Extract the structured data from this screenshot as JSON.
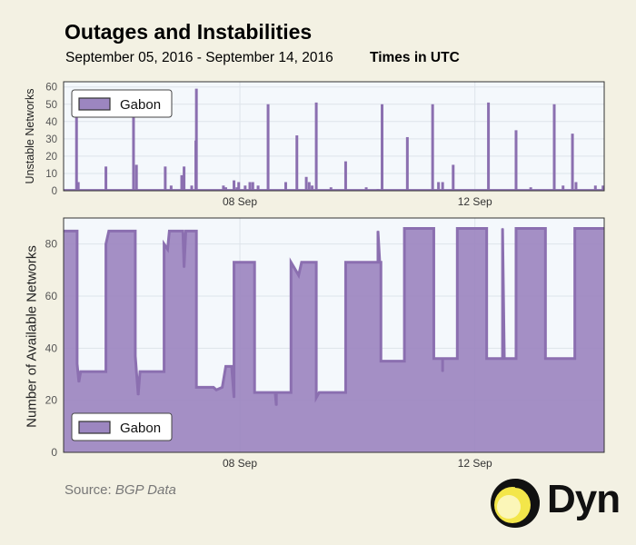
{
  "title": "Outages and Instabilities",
  "subtitle": "September 05, 2016 - September 14, 2016",
  "timezone_note": "Times in UTC",
  "source_label": "Source:",
  "source_value": "BGP Data",
  "brand": "Dyn",
  "colors": {
    "series": "#8b6fb0",
    "series_fill": "#9c86c0",
    "plot_bg": "#f4f8fc",
    "page_bg": "#f3f1e3"
  },
  "chart_data": [
    {
      "type": "bar",
      "ylabel": "Unstable Networks",
      "ylim": [
        0,
        63
      ],
      "yticks": [
        0,
        10,
        20,
        30,
        40,
        50,
        60
      ],
      "xlim": [
        0,
        9.2
      ],
      "xticks": [
        {
          "x": 3,
          "label": "08 Sep"
        },
        {
          "x": 7,
          "label": "12 Sep"
        }
      ],
      "grid": true,
      "legend": {
        "entries": [
          "Gabon"
        ],
        "placement": "top-left"
      },
      "series": [
        {
          "name": "Gabon",
          "points": [
            [
              0.22,
              47
            ],
            [
              0.25,
              5
            ],
            [
              0.72,
              14
            ],
            [
              1.19,
              47
            ],
            [
              1.24,
              15
            ],
            [
              1.73,
              14
            ],
            [
              1.83,
              3
            ],
            [
              2.01,
              9
            ],
            [
              2.05,
              14
            ],
            [
              2.18,
              3
            ],
            [
              2.26,
              59
            ],
            [
              2.25,
              29
            ],
            [
              2.72,
              3
            ],
            [
              2.76,
              2
            ],
            [
              2.9,
              6
            ],
            [
              2.95,
              2
            ],
            [
              2.98,
              5
            ],
            [
              3.09,
              3
            ],
            [
              3.17,
              5
            ],
            [
              3.22,
              5
            ],
            [
              3.31,
              3
            ],
            [
              3.48,
              50
            ],
            [
              3.78,
              5
            ],
            [
              3.97,
              32
            ],
            [
              4.13,
              8
            ],
            [
              4.18,
              5
            ],
            [
              4.23,
              3
            ],
            [
              4.3,
              51
            ],
            [
              4.55,
              2
            ],
            [
              4.8,
              17
            ],
            [
              5.15,
              2
            ],
            [
              5.35,
              1
            ],
            [
              5.42,
              50
            ],
            [
              5.85,
              31
            ],
            [
              6.28,
              50
            ],
            [
              6.38,
              5
            ],
            [
              6.45,
              5
            ],
            [
              6.63,
              15
            ],
            [
              7.23,
              51
            ],
            [
              7.7,
              35
            ],
            [
              7.95,
              2
            ],
            [
              8.35,
              50
            ],
            [
              8.5,
              3
            ],
            [
              8.66,
              33
            ],
            [
              8.72,
              5
            ],
            [
              9.05,
              3
            ],
            [
              9.18,
              3
            ]
          ]
        }
      ]
    },
    {
      "type": "area",
      "ylabel": "Number of Available Networks",
      "ylim": [
        0,
        90
      ],
      "yticks": [
        0,
        20,
        40,
        60,
        80
      ],
      "xlim": [
        0,
        9.2
      ],
      "xticks": [
        {
          "x": 3,
          "label": "08 Sep"
        },
        {
          "x": 7,
          "label": "12 Sep"
        }
      ],
      "grid": true,
      "legend": {
        "entries": [
          "Gabon"
        ],
        "placement": "bottom-left"
      },
      "series": [
        {
          "name": "Gabon",
          "points": [
            [
              0,
              85
            ],
            [
              0.23,
              85
            ],
            [
              0.23,
              34
            ],
            [
              0.26,
              27
            ],
            [
              0.29,
              31
            ],
            [
              0.72,
              31
            ],
            [
              0.72,
              80
            ],
            [
              0.77,
              85
            ],
            [
              1.22,
              85
            ],
            [
              1.22,
              37
            ],
            [
              1.27,
              22
            ],
            [
              1.3,
              31
            ],
            [
              1.71,
              31
            ],
            [
              1.71,
              80
            ],
            [
              1.77,
              78
            ],
            [
              1.8,
              85
            ],
            [
              2.03,
              85
            ],
            [
              2.05,
              71
            ],
            [
              2.08,
              85
            ],
            [
              2.26,
              85
            ],
            [
              2.26,
              25
            ],
            [
              2.55,
              25
            ],
            [
              2.6,
              24
            ],
            [
              2.7,
              25
            ],
            [
              2.76,
              33
            ],
            [
              2.86,
              33
            ],
            [
              2.9,
              21
            ],
            [
              2.9,
              73
            ],
            [
              3.25,
              73
            ],
            [
              3.25,
              23
            ],
            [
              3.6,
              23
            ],
            [
              3.62,
              18
            ],
            [
              3.62,
              23
            ],
            [
              3.87,
              23
            ],
            [
              3.87,
              73
            ],
            [
              4.0,
              68
            ],
            [
              4.05,
              73
            ],
            [
              4.3,
              73
            ],
            [
              4.3,
              21
            ],
            [
              4.35,
              23
            ],
            [
              4.8,
              23
            ],
            [
              4.8,
              73
            ],
            [
              5.35,
              73
            ],
            [
              5.35,
              85
            ],
            [
              5.38,
              73
            ],
            [
              5.4,
              73
            ],
            [
              5.4,
              35
            ],
            [
              5.8,
              35
            ],
            [
              5.8,
              86
            ],
            [
              6.3,
              86
            ],
            [
              6.3,
              36
            ],
            [
              6.45,
              36
            ],
            [
              6.45,
              31
            ],
            [
              6.45,
              36
            ],
            [
              6.7,
              36
            ],
            [
              6.7,
              86
            ],
            [
              7.2,
              86
            ],
            [
              7.2,
              36
            ],
            [
              7.47,
              36
            ],
            [
              7.47,
              86
            ],
            [
              7.5,
              36
            ],
            [
              7.7,
              36
            ],
            [
              7.7,
              86
            ],
            [
              8.2,
              86
            ],
            [
              8.2,
              36
            ],
            [
              8.7,
              36
            ],
            [
              8.7,
              86
            ],
            [
              9.2,
              86
            ]
          ]
        }
      ]
    }
  ]
}
